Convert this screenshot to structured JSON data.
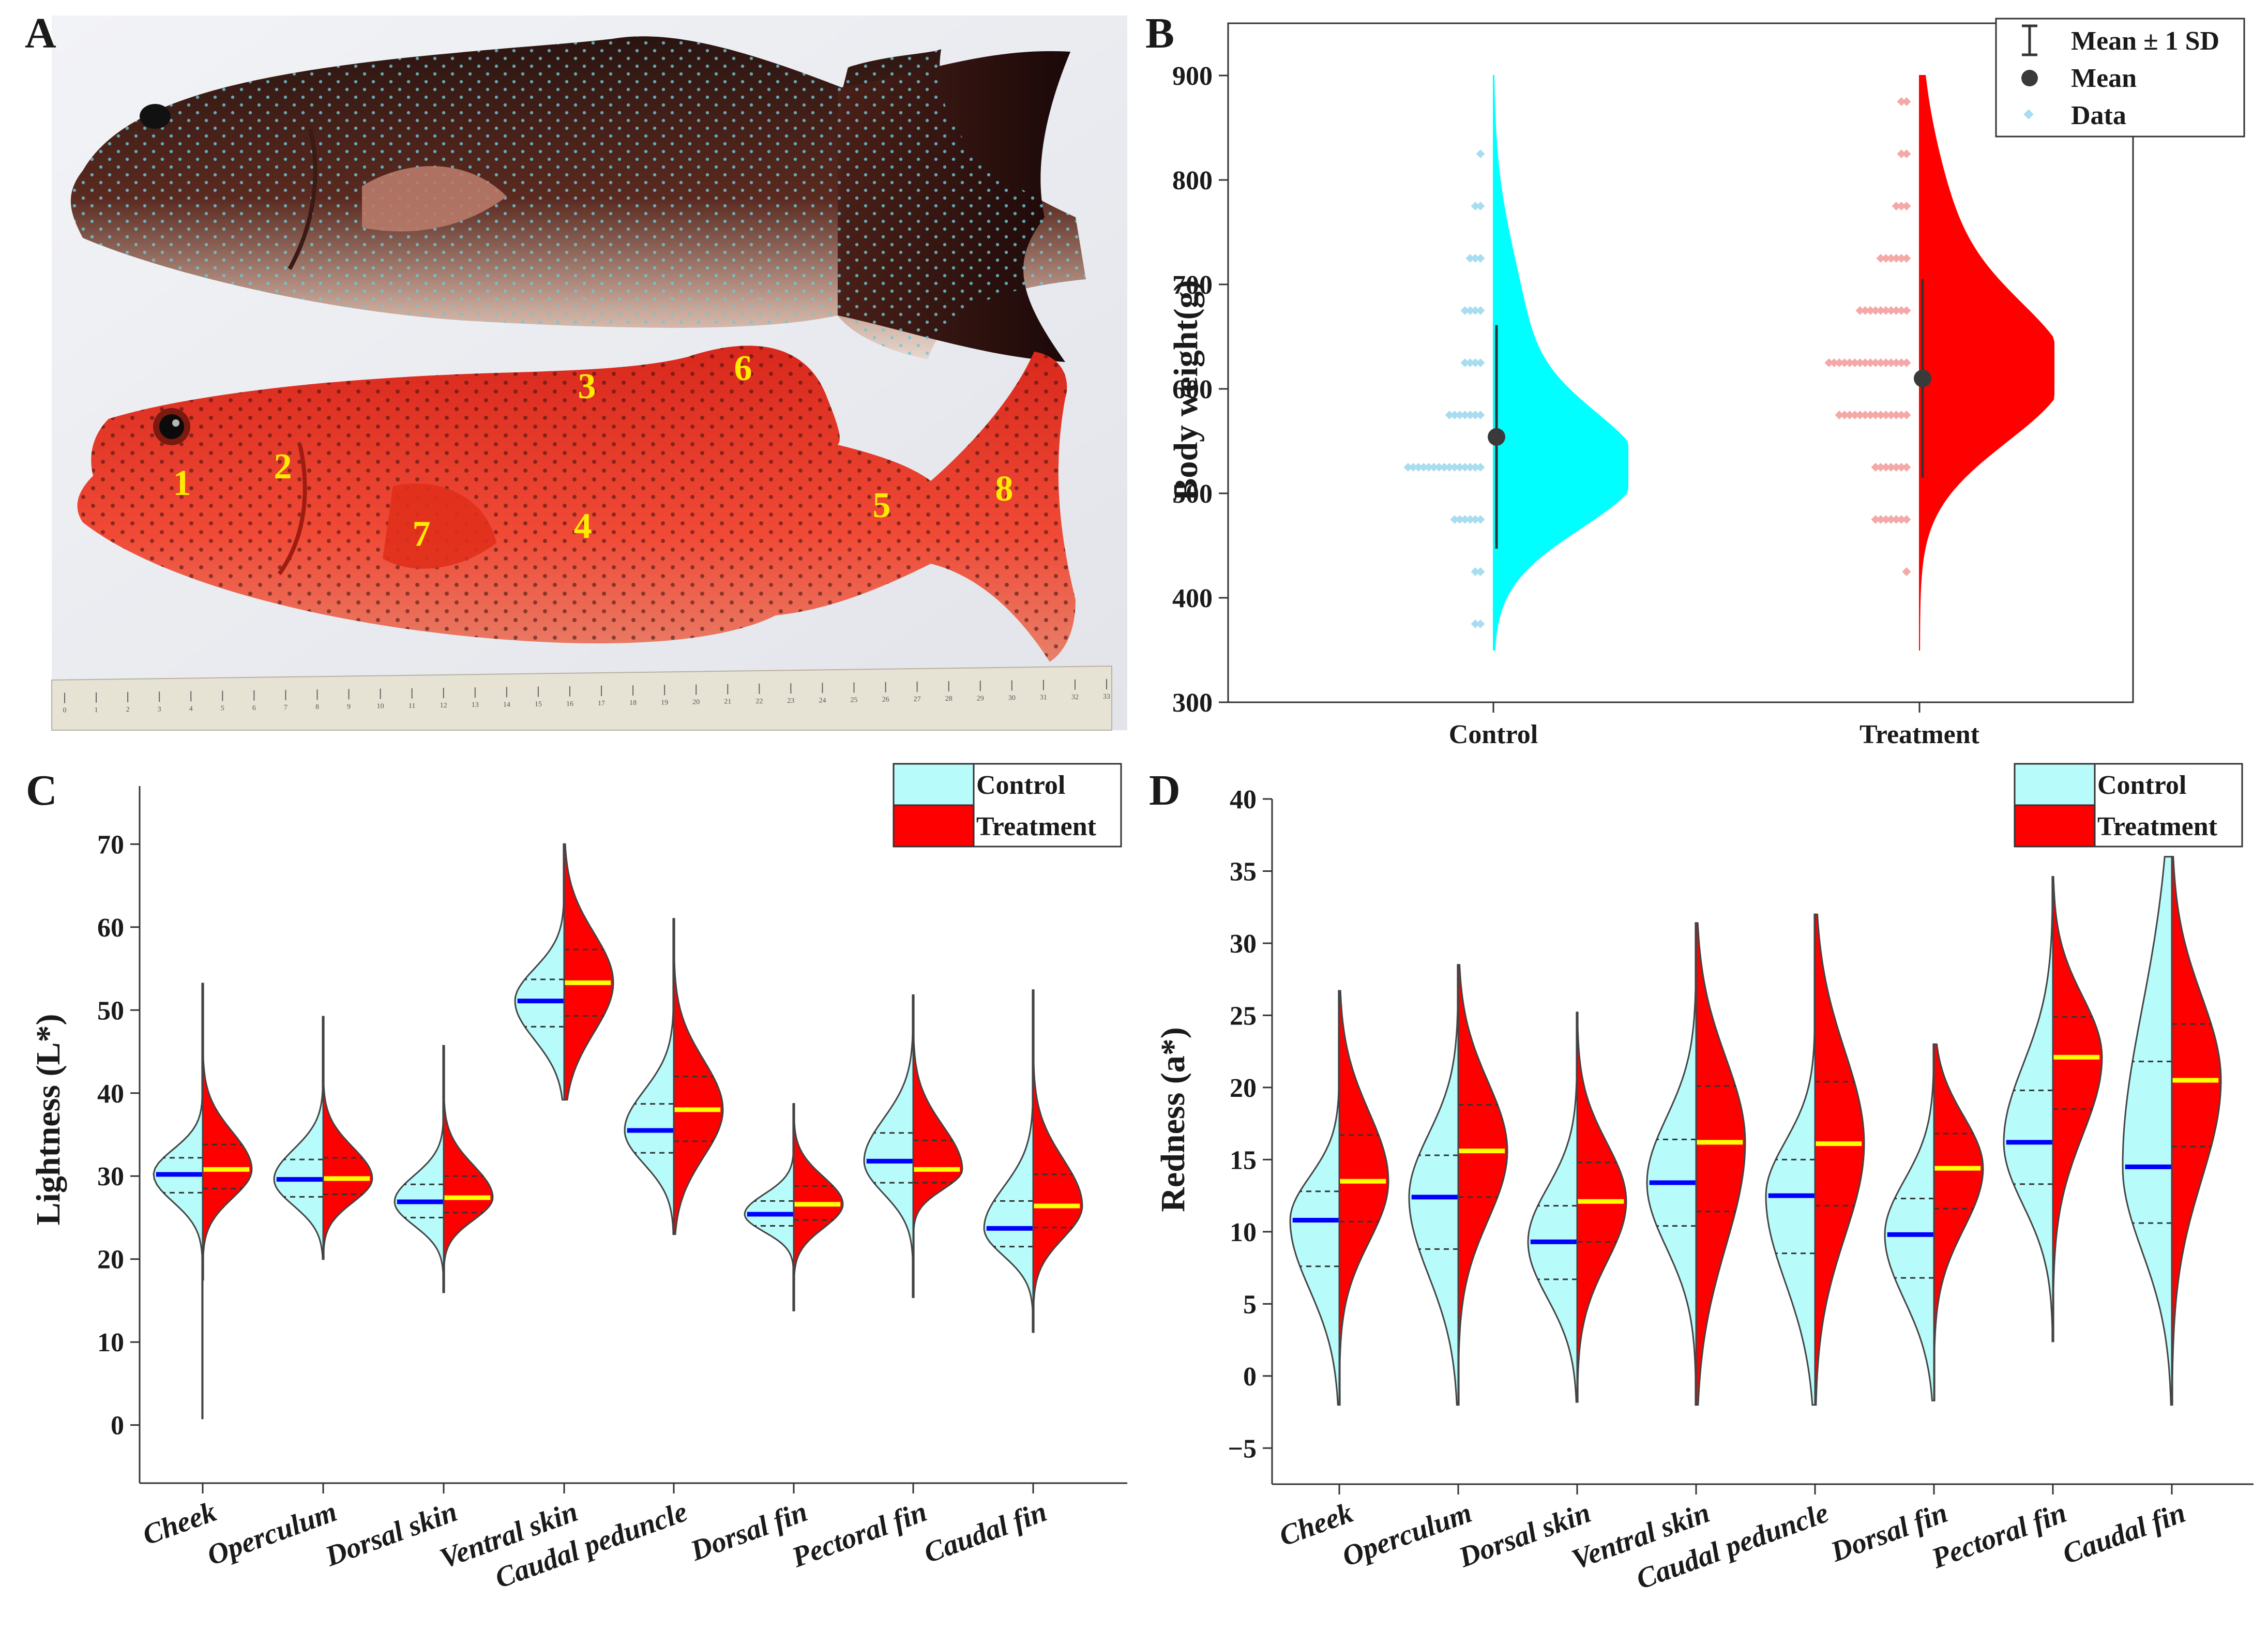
{
  "panels": {
    "A": "A",
    "B": "B",
    "C": "C",
    "D": "D"
  },
  "fish_region_labels": [
    "1",
    "2",
    "3",
    "4",
    "5",
    "6",
    "7",
    "8"
  ],
  "colors": {
    "control": "#00ffff",
    "treatment": "#ff0000",
    "control_violin": "#b8fbfb",
    "control_data": "#a8ddf0",
    "treatment_data": "#f4a8a8",
    "control_median": "#0000ff",
    "treatment_median": "#ffff00",
    "mean_point": "#3a3a3a"
  },
  "chart_data": [
    {
      "id": "B",
      "type": "violin",
      "title": "",
      "xlabel": "",
      "ylabel": "Body weight(g)",
      "categories": [
        "Control",
        "Treatment"
      ],
      "ylim": [
        300,
        950
      ],
      "yticks": [
        300,
        400,
        500,
        600,
        700,
        800,
        900
      ],
      "legend": {
        "placement": "top-right",
        "entries": [
          "Mean ± 1 SD",
          "Mean",
          "Data"
        ]
      },
      "series": [
        {
          "name": "Control",
          "mean": 554,
          "sd": 107,
          "range": [
            350,
            900
          ],
          "mode": 520,
          "data_bins": [
            {
              "y": 375,
              "n": 2
            },
            {
              "y": 425,
              "n": 2
            },
            {
              "y": 475,
              "n": 6
            },
            {
              "y": 525,
              "n": 15
            },
            {
              "y": 575,
              "n": 7
            },
            {
              "y": 625,
              "n": 4
            },
            {
              "y": 675,
              "n": 4
            },
            {
              "y": 725,
              "n": 3
            },
            {
              "y": 775,
              "n": 2
            },
            {
              "y": 825,
              "n": 1
            }
          ]
        },
        {
          "name": "Treatment",
          "mean": 610,
          "sd": 95,
          "range": [
            350,
            900
          ],
          "mode": 612,
          "data_bins": [
            {
              "y": 425,
              "n": 1
            },
            {
              "y": 475,
              "n": 7
            },
            {
              "y": 525,
              "n": 7
            },
            {
              "y": 575,
              "n": 14
            },
            {
              "y": 625,
              "n": 16
            },
            {
              "y": 675,
              "n": 10
            },
            {
              "y": 725,
              "n": 6
            },
            {
              "y": 775,
              "n": 3
            },
            {
              "y": 825,
              "n": 2
            },
            {
              "y": 875,
              "n": 2
            }
          ]
        }
      ]
    },
    {
      "id": "C",
      "type": "split-violin",
      "title": "",
      "xlabel": "",
      "ylabel": "Lightness (L*)",
      "ylim": [
        -7,
        77
      ],
      "yticks": [
        0,
        10,
        20,
        30,
        40,
        50,
        60,
        70
      ],
      "legend": {
        "placement": "top-right",
        "entries": [
          "Control",
          "Treatment"
        ]
      },
      "categories": [
        "Cheek",
        "Operculum",
        "Dorsal skin",
        "Ventral skin",
        "Caudal peduncle",
        "Dorsal fin",
        "Pectoral fin",
        "Caudal fin"
      ],
      "series": [
        {
          "name": "Control",
          "median": [
            30.2,
            29.6,
            26.9,
            51.1,
            35.5,
            25.4,
            31.8,
            23.7
          ],
          "q1": [
            28.0,
            27.5,
            25.0,
            48.0,
            32.8,
            24.0,
            29.2,
            21.5
          ],
          "q3": [
            32.2,
            32.0,
            29.0,
            53.7,
            38.7,
            27.0,
            35.2,
            27.0
          ],
          "min": [
            0.8,
            20.0,
            16.0,
            39.2,
            23.0,
            13.8,
            15.4,
            11.2
          ],
          "max": [
            53.2,
            49.2,
            45.7,
            70.0,
            61.0,
            38.7,
            51.8,
            52.4
          ]
        },
        {
          "name": "Treatment",
          "median": [
            30.8,
            29.7,
            27.4,
            53.3,
            38.0,
            26.6,
            30.8,
            26.4
          ],
          "q1": [
            28.5,
            27.8,
            25.6,
            49.3,
            34.2,
            24.7,
            29.2,
            23.8
          ],
          "q3": [
            33.8,
            32.2,
            30.0,
            57.3,
            42.0,
            28.8,
            34.3,
            30.2
          ],
          "min": [
            17.5,
            20.0,
            16.0,
            39.2,
            23.0,
            13.8,
            15.4,
            11.2
          ],
          "max": [
            53.2,
            49.2,
            45.7,
            70.0,
            61.0,
            38.7,
            51.8,
            52.4
          ]
        }
      ]
    },
    {
      "id": "D",
      "type": "split-violin",
      "title": "",
      "xlabel": "",
      "ylabel": "Redness (a*)",
      "ylim": [
        -7.5,
        40
      ],
      "yticks": [
        -5,
        0,
        5,
        10,
        15,
        20,
        25,
        30,
        35,
        40
      ],
      "legend": {
        "placement": "top-right",
        "entries": [
          "Control",
          "Treatment"
        ]
      },
      "categories": [
        "Cheek",
        "Operculum",
        "Dorsal skin",
        "Ventral skin",
        "Caudal peduncle",
        "Dorsal fin",
        "Pectoral fin",
        "Caudal fin"
      ],
      "series": [
        {
          "name": "Control",
          "median": [
            10.8,
            12.4,
            9.3,
            13.4,
            12.5,
            9.8,
            16.2,
            14.5
          ],
          "q1": [
            7.6,
            8.8,
            6.7,
            10.4,
            8.5,
            6.8,
            13.3,
            10.6
          ],
          "q3": [
            12.8,
            15.3,
            11.8,
            16.4,
            15.0,
            12.3,
            19.8,
            21.8
          ],
          "min": [
            -2.0,
            -2.0,
            -1.8,
            -2.0,
            -2.0,
            -1.7,
            2.4,
            -2.0
          ],
          "max": [
            26.7,
            28.5,
            25.2,
            31.4,
            32.0,
            23.0,
            34.6,
            36.0
          ]
        },
        {
          "name": "Treatment",
          "median": [
            13.5,
            15.6,
            12.1,
            16.2,
            16.1,
            14.4,
            22.1,
            20.5
          ],
          "q1": [
            10.7,
            12.4,
            9.3,
            11.4,
            11.8,
            11.6,
            18.5,
            15.9
          ],
          "q3": [
            16.7,
            18.8,
            14.8,
            20.1,
            20.4,
            16.8,
            24.9,
            24.4
          ],
          "min": [
            -2.0,
            -2.0,
            -1.8,
            -2.0,
            -2.0,
            -1.7,
            2.4,
            -2.0
          ],
          "max": [
            26.7,
            28.5,
            25.2,
            31.4,
            32.0,
            23.0,
            34.6,
            36.0
          ]
        }
      ]
    }
  ]
}
